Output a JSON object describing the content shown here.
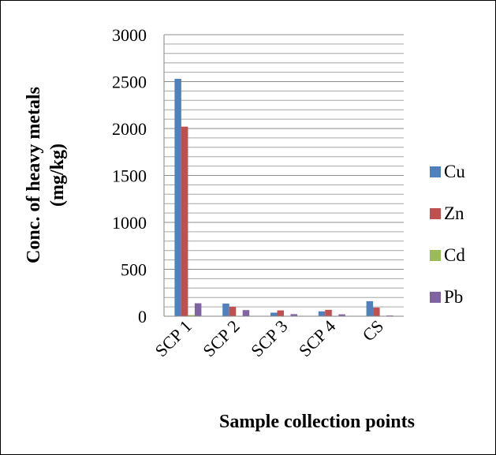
{
  "chart_data": {
    "type": "bar",
    "title": "",
    "xlabel": "Sample collection points",
    "ylabel_line1": "Conc. of heavy metals",
    "ylabel_line2": "(mg/kg)",
    "categories": [
      "SCP 1",
      "SCP 2",
      "SCP 3",
      "SCP 4",
      "CS"
    ],
    "ylim": [
      0,
      3000
    ],
    "yticks": [
      0,
      500,
      1000,
      1500,
      2000,
      2500,
      3000
    ],
    "minor_grid_step": 100,
    "grid": true,
    "legend_position": "right",
    "series": [
      {
        "name": "Cu",
        "color": "#4F81BD",
        "values": [
          2530,
          135,
          38,
          52,
          160
        ]
      },
      {
        "name": "Zn",
        "color": "#C0504D",
        "values": [
          2020,
          100,
          62,
          68,
          92
        ]
      },
      {
        "name": "Cd",
        "color": "#9BBB59",
        "values": [
          12,
          3,
          2,
          2,
          3
        ]
      },
      {
        "name": "Pb",
        "color": "#8064A2",
        "values": [
          138,
          65,
          22,
          20,
          8
        ]
      }
    ]
  }
}
